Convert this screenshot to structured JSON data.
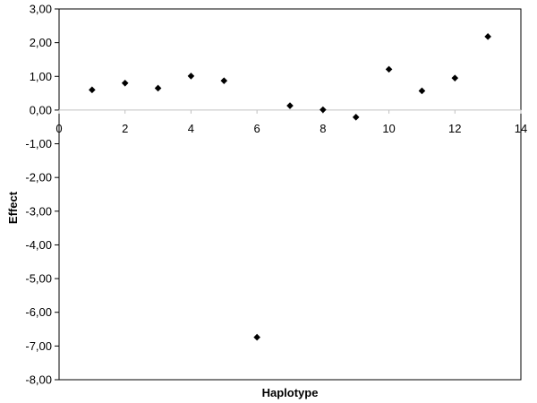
{
  "chart_data": {
    "type": "scatter",
    "title": "",
    "xlabel": "Haplotype",
    "ylabel": "Effect",
    "xlim": [
      0,
      14
    ],
    "ylim": [
      -8,
      3
    ],
    "x_ticks": [
      0,
      2,
      4,
      6,
      8,
      10,
      12,
      14
    ],
    "x_tick_labels": [
      "0",
      "2",
      "4",
      "6",
      "8",
      "10",
      "12",
      "14"
    ],
    "y_ticks": [
      3,
      2,
      1,
      0,
      -1,
      -2,
      -3,
      -4,
      -5,
      -6,
      -7,
      -8
    ],
    "y_tick_labels": [
      "3,00",
      "2,00",
      "1,00",
      "0,00",
      "-1,00",
      "-2,00",
      "-3,00",
      "-4,00",
      "-5,00",
      "-6,00",
      "-7,00",
      "-8,00"
    ],
    "grid": false,
    "legend": "none",
    "marker": "diamond",
    "colors": {
      "marker": "#000000",
      "axis": "#000000",
      "zero_line": "#c0c0c0"
    },
    "points": [
      {
        "x": 1,
        "y": 0.6
      },
      {
        "x": 2,
        "y": 0.8
      },
      {
        "x": 3,
        "y": 0.65
      },
      {
        "x": 4,
        "y": 1.01
      },
      {
        "x": 5,
        "y": 0.87
      },
      {
        "x": 6,
        "y": -6.74
      },
      {
        "x": 7,
        "y": 0.13
      },
      {
        "x": 8,
        "y": 0.01
      },
      {
        "x": 9,
        "y": -0.21
      },
      {
        "x": 10,
        "y": 1.21
      },
      {
        "x": 11,
        "y": 0.57
      },
      {
        "x": 12,
        "y": 0.95
      },
      {
        "x": 13,
        "y": 2.18
      }
    ]
  }
}
